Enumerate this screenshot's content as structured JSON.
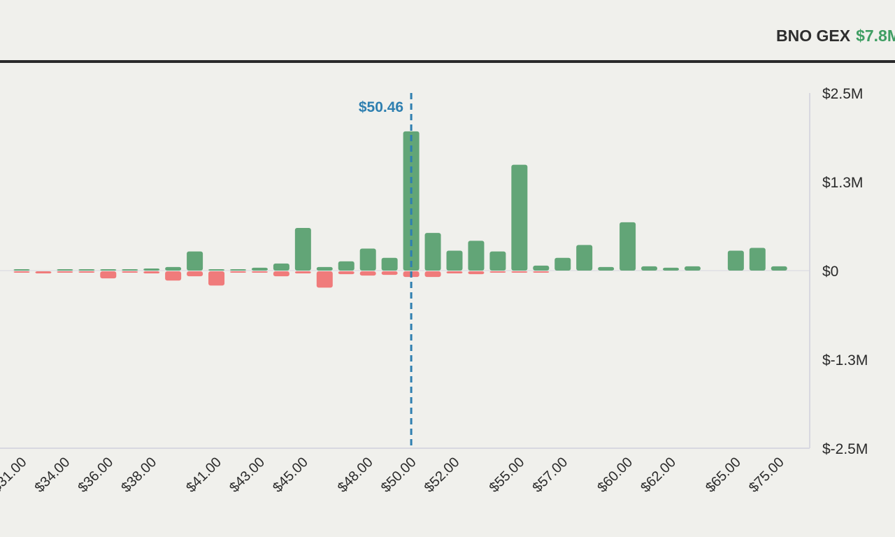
{
  "header": {
    "ticker_label": "BNO GEX",
    "gex_value": "$7.8M"
  },
  "colors": {
    "positive": "#62a577",
    "negative": "#f07b7b",
    "price_line": "#2e7fb0",
    "axis": "#d8d8e0"
  },
  "chart_data": {
    "type": "bar",
    "title": "",
    "xlabel": "",
    "ylabel": "",
    "ylim": [
      -2500000,
      2500000
    ],
    "yticks": [
      {
        "value": 2500000,
        "label": "$2.5M"
      },
      {
        "value": 1250000,
        "label": "$1.3M"
      },
      {
        "value": 0,
        "label": "$0"
      },
      {
        "value": -1250000,
        "label": "$-1.3M"
      },
      {
        "value": -2500000,
        "label": "$-2.5M"
      }
    ],
    "xticks": [
      {
        "index": 0,
        "label": "$31.00"
      },
      {
        "index": 2,
        "label": "$34.00"
      },
      {
        "index": 4,
        "label": "$36.00"
      },
      {
        "index": 6,
        "label": "$38.00"
      },
      {
        "index": 9,
        "label": "$41.00"
      },
      {
        "index": 11,
        "label": "$43.00"
      },
      {
        "index": 13,
        "label": "$45.00"
      },
      {
        "index": 16,
        "label": "$48.00"
      },
      {
        "index": 18,
        "label": "$50.00"
      },
      {
        "index": 20,
        "label": "$52.00"
      },
      {
        "index": 23,
        "label": "$55.00"
      },
      {
        "index": 25,
        "label": "$57.00"
      },
      {
        "index": 28,
        "label": "$60.00"
      },
      {
        "index": 30,
        "label": "$62.00"
      },
      {
        "index": 33,
        "label": "$65.00"
      },
      {
        "index": 35,
        "label": "$75.00"
      }
    ],
    "current_price": {
      "label": "$50.46",
      "position": 18.0
    },
    "categories": [
      "$31.00",
      "$32.00",
      "$34.00",
      "$35.00",
      "$36.00",
      "$37.00",
      "$38.00",
      "$39.00",
      "$40.00",
      "$41.00",
      "$42.00",
      "$43.00",
      "$44.00",
      "$45.00",
      "$46.00",
      "$47.00",
      "$48.00",
      "$49.00",
      "$50.00",
      "$51.00",
      "$52.00",
      "$53.00",
      "$54.00",
      "$55.00",
      "$56.00",
      "$57.00",
      "$58.00",
      "$59.00",
      "$60.00",
      "$61.00",
      "$62.00",
      "$63.00",
      "$64.00",
      "$65.00",
      "$70.00",
      "$75.00"
    ],
    "series": [
      {
        "name": "Call GEX",
        "values": [
          10000,
          0,
          10000,
          20000,
          20000,
          20000,
          30000,
          50000,
          270000,
          10000,
          20000,
          40000,
          100000,
          600000,
          50000,
          130000,
          310000,
          180000,
          1960000,
          530000,
          280000,
          420000,
          270000,
          1490000,
          70000,
          180000,
          360000,
          50000,
          680000,
          60000,
          40000,
          60000,
          0,
          280000,
          320000,
          60000
        ]
      },
      {
        "name": "Put GEX",
        "values": [
          -5000,
          -30000,
          -20000,
          -5000,
          -100000,
          -10000,
          -30000,
          -130000,
          -70000,
          -200000,
          -10000,
          -15000,
          -70000,
          -30000,
          -230000,
          -40000,
          -60000,
          -50000,
          -80000,
          -80000,
          -30000,
          -40000,
          -10000,
          -10000,
          -15000,
          0,
          0,
          0,
          0,
          0,
          0,
          0,
          0,
          0,
          0,
          0
        ]
      }
    ]
  }
}
